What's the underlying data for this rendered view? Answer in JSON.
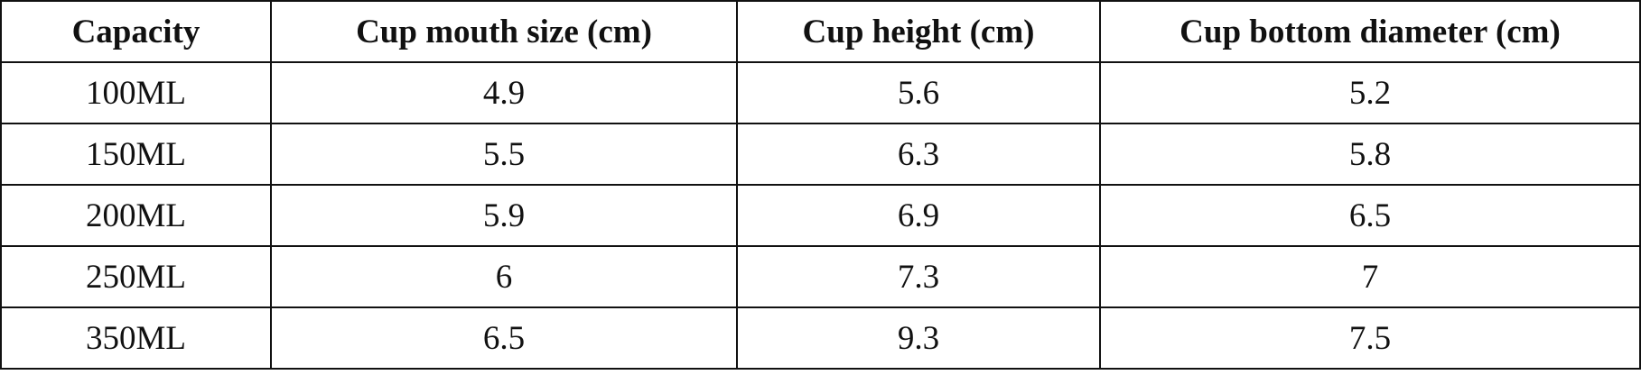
{
  "table": {
    "header": [
      "Capacity",
      "Cup mouth size (cm)",
      "Cup height (cm)",
      "Cup bottom diameter (cm)"
    ],
    "rows": [
      [
        "100ML",
        "4.9",
        "5.6",
        "5.2"
      ],
      [
        "150ML",
        "5.5",
        "6.3",
        "5.8"
      ],
      [
        "200ML",
        "5.9",
        "6.9",
        "6.5"
      ],
      [
        "250ML",
        "6",
        "7.3",
        "7"
      ],
      [
        "350ML",
        "6.5",
        "9.3",
        "7.5"
      ]
    ]
  }
}
